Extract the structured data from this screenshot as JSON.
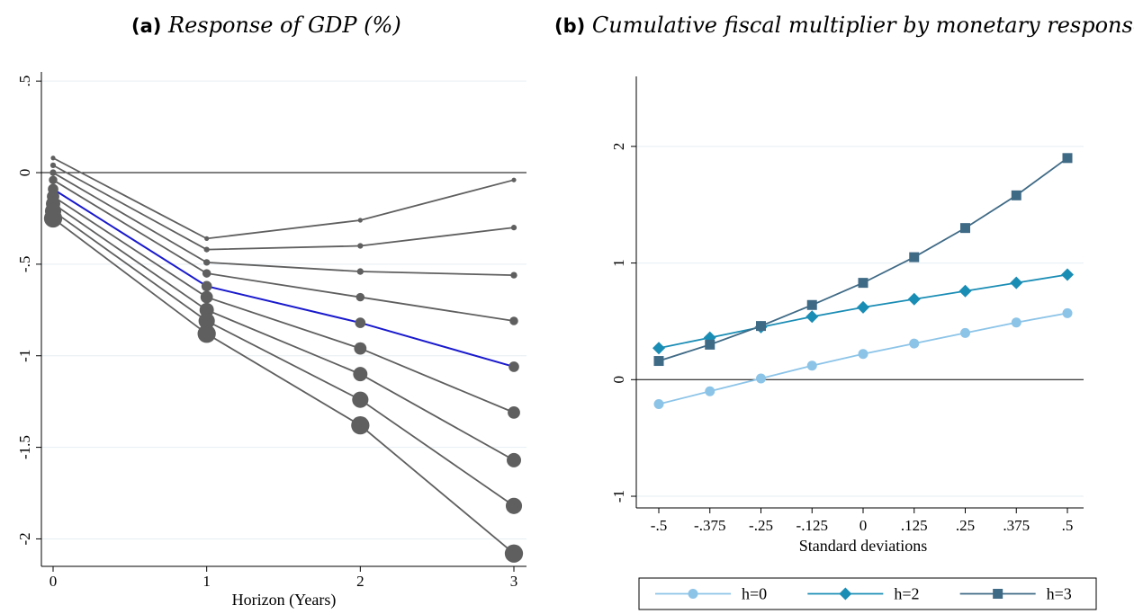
{
  "panel_a": {
    "tag": "(a)",
    "title": "Response of GDP (%)"
  },
  "panel_b": {
    "tag": "(b)",
    "title": "Cumulative fiscal multiplier by monetary response"
  },
  "chart_data": [
    {
      "type": "line",
      "title": "Response of GDP (%)",
      "xlabel": "Horizon (Years)",
      "ylabel": "",
      "x": [
        0,
        1,
        2,
        3
      ],
      "xticks": [
        "0",
        "1",
        "2",
        "3"
      ],
      "yticks": [
        0.5,
        0,
        -0.5,
        -1,
        -1.5,
        -2
      ],
      "ytick_labels": [
        ".5",
        "0",
        "-.5",
        "-1",
        "-1.5",
        "-2"
      ],
      "ylim": [
        -2.15,
        0.55
      ],
      "zero_line": true,
      "grid": true,
      "line_color": "#5f5f5f",
      "highlight_color": "#1a1acc",
      "series": [
        {
          "values": [
            0.08,
            -0.36,
            -0.26,
            -0.04
          ],
          "marker_size": 1
        },
        {
          "values": [
            0.04,
            -0.42,
            -0.4,
            -0.3
          ],
          "marker_size": 1.5
        },
        {
          "values": [
            0.0,
            -0.49,
            -0.54,
            -0.56
          ],
          "marker_size": 2
        },
        {
          "values": [
            -0.04,
            -0.55,
            -0.68,
            -0.81
          ],
          "marker_size": 3
        },
        {
          "values": [
            -0.09,
            -0.62,
            -0.82,
            -1.06
          ],
          "marker_size": 4,
          "highlight": true
        },
        {
          "values": [
            -0.13,
            -0.68,
            -0.96,
            -1.31
          ],
          "marker_size": 5
        },
        {
          "values": [
            -0.17,
            -0.75,
            -1.1,
            -1.57
          ],
          "marker_size": 6
        },
        {
          "values": [
            -0.21,
            -0.81,
            -1.24,
            -1.82
          ],
          "marker_size": 7
        },
        {
          "values": [
            -0.25,
            -0.88,
            -1.38,
            -2.08
          ],
          "marker_size": 8
        }
      ]
    },
    {
      "type": "line",
      "title": "Cumulative fiscal multiplier by monetary response",
      "xlabel": "Standard deviations",
      "ylabel": "",
      "x": [
        -0.5,
        -0.375,
        -0.25,
        -0.125,
        0,
        0.125,
        0.25,
        0.375,
        0.5
      ],
      "xtick_labels": [
        "-.5",
        "-.375",
        "-.25",
        "-.125",
        "0",
        ".125",
        ".25",
        ".375",
        ".5"
      ],
      "yticks": [
        2,
        1,
        0,
        -1
      ],
      "ytick_labels": [
        "2",
        "1",
        "0",
        "-1"
      ],
      "ylim": [
        -1.1,
        2.6
      ],
      "zero_line": true,
      "grid": true,
      "legend_position": "bottom",
      "series": [
        {
          "name": "h=0",
          "color": "#8cc4e8",
          "marker": "circle",
          "values": [
            -0.21,
            -0.1,
            0.01,
            0.12,
            0.22,
            0.31,
            0.4,
            0.49,
            0.57
          ]
        },
        {
          "name": "h=2",
          "color": "#1a8db5",
          "marker": "diamond",
          "values": [
            0.27,
            0.36,
            0.45,
            0.54,
            0.62,
            0.69,
            0.76,
            0.83,
            0.9
          ]
        },
        {
          "name": "h=3",
          "color": "#3f6a86",
          "marker": "square",
          "values": [
            0.16,
            0.3,
            0.46,
            0.64,
            0.83,
            1.05,
            1.3,
            1.58,
            1.9
          ]
        }
      ]
    }
  ]
}
